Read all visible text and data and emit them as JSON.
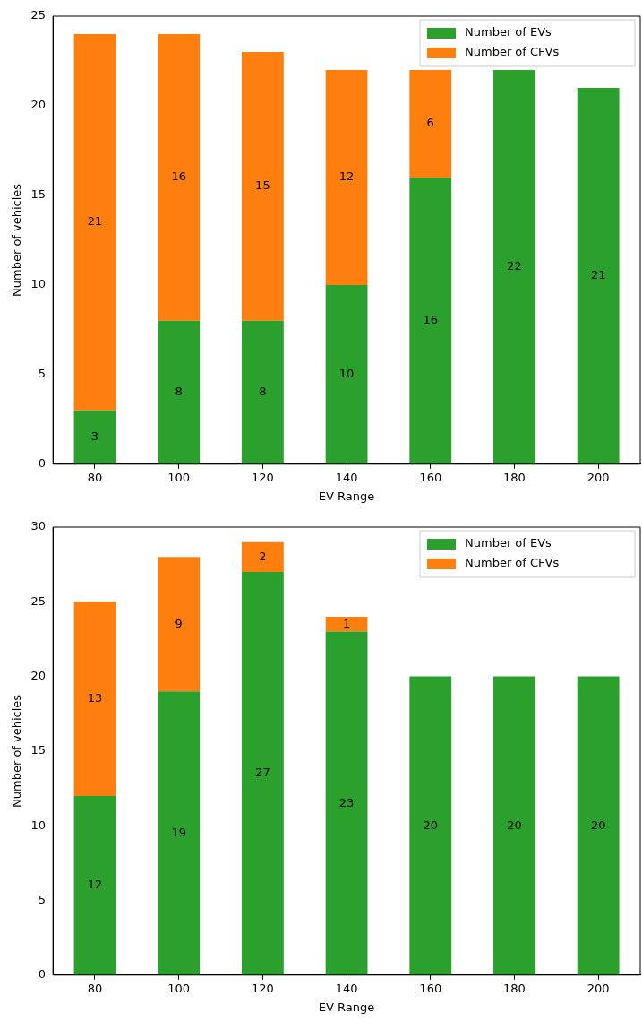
{
  "chart_data": [
    {
      "type": "bar",
      "stacked": true,
      "categories": [
        "80",
        "100",
        "120",
        "140",
        "160",
        "180",
        "200"
      ],
      "xlabel": "EV Range",
      "ylabel": "Number of vehicles",
      "ylim": [
        0,
        25
      ],
      "yticks": [
        0,
        5,
        10,
        15,
        20,
        25
      ],
      "grid": false,
      "legend": "top right",
      "data_labels": true,
      "series": [
        {
          "name": "Number of EVs",
          "color": "#2ca02c",
          "values": [
            3,
            8,
            8,
            10,
            16,
            22,
            21
          ]
        },
        {
          "name": "Number of CFVs",
          "color": "#ff7f0e",
          "values": [
            21,
            16,
            15,
            12,
            6,
            null,
            null
          ]
        }
      ]
    },
    {
      "type": "bar",
      "stacked": true,
      "categories": [
        "80",
        "100",
        "120",
        "140",
        "160",
        "180",
        "200"
      ],
      "xlabel": "EV Range",
      "ylabel": "Number of vehicles",
      "ylim": [
        0,
        30
      ],
      "yticks": [
        0,
        5,
        10,
        15,
        20,
        25,
        30
      ],
      "grid": false,
      "legend": "top right",
      "data_labels": true,
      "series": [
        {
          "name": "Number of EVs",
          "color": "#2ca02c",
          "values": [
            12,
            19,
            27,
            23,
            20,
            20,
            20
          ]
        },
        {
          "name": "Number of CFVs",
          "color": "#ff7f0e",
          "values": [
            13,
            9,
            2,
            1,
            null,
            null,
            null
          ]
        }
      ]
    }
  ]
}
